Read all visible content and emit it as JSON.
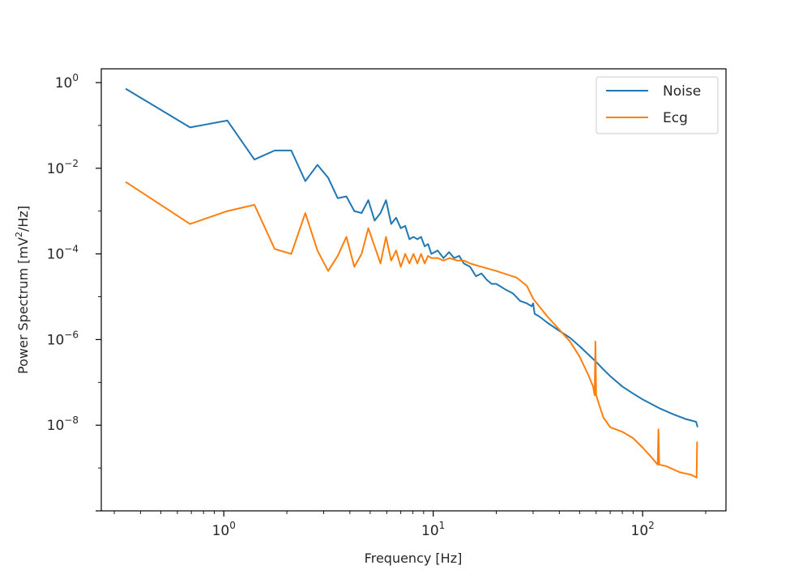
{
  "chart_data": {
    "type": "line",
    "title": "",
    "xlabel": "Frequency [Hz]",
    "ylabel_parts": [
      "Power Spectrum [mV",
      "2",
      "/Hz]"
    ],
    "xscale": "log",
    "yscale": "log",
    "xlim": [
      0.26,
      250
    ],
    "ylim": [
      1e-10,
      2.1
    ],
    "grid": false,
    "legend_position": "top-right",
    "x_ticks": [
      {
        "base": "10",
        "exp": "0",
        "value": 1
      },
      {
        "base": "10",
        "exp": "1",
        "value": 10
      },
      {
        "base": "10",
        "exp": "2",
        "value": 100
      }
    ],
    "y_ticks": [
      {
        "base": "10",
        "exp": "0",
        "value": 1
      },
      {
        "base": "10",
        "exp": "−2",
        "value": 0.01
      },
      {
        "base": "10",
        "exp": "−4",
        "value": 0.0001
      },
      {
        "base": "10",
        "exp": "−6",
        "value": 1e-06
      },
      {
        "base": "10",
        "exp": "−8",
        "value": 1e-08
      }
    ],
    "series": [
      {
        "name": "Noise",
        "color": "#1f77b4",
        "points": [
          [
            0.34,
            0.72
          ],
          [
            0.69,
            0.09
          ],
          [
            1.04,
            0.13
          ],
          [
            1.4,
            0.016
          ],
          [
            1.75,
            0.026
          ],
          [
            2.1,
            0.026
          ],
          [
            2.45,
            0.005
          ],
          [
            2.8,
            0.012
          ],
          [
            3.15,
            0.006
          ],
          [
            3.5,
            0.002
          ],
          [
            3.85,
            0.0022
          ],
          [
            4.2,
            0.001
          ],
          [
            4.55,
            0.0009
          ],
          [
            4.9,
            0.0018
          ],
          [
            5.25,
            0.0006
          ],
          [
            5.6,
            0.0009
          ],
          [
            5.95,
            0.0018
          ],
          [
            6.3,
            0.0005
          ],
          [
            6.65,
            0.0007
          ],
          [
            7.0,
            0.0004
          ],
          [
            7.35,
            0.00045
          ],
          [
            7.7,
            0.00022
          ],
          [
            8.05,
            0.00025
          ],
          [
            8.4,
            0.00022
          ],
          [
            8.75,
            0.00025
          ],
          [
            9.1,
            0.00015
          ],
          [
            9.45,
            0.00017
          ],
          [
            9.8,
            0.0001
          ],
          [
            10.5,
            0.00012
          ],
          [
            11.2,
            8e-05
          ],
          [
            11.9,
            0.00011
          ],
          [
            12.6,
            8e-05
          ],
          [
            13.3,
            9e-05
          ],
          [
            14,
            6e-05
          ],
          [
            15,
            5e-05
          ],
          [
            16,
            3e-05
          ],
          [
            17,
            3.5e-05
          ],
          [
            18,
            2.5e-05
          ],
          [
            19,
            2e-05
          ],
          [
            20,
            2e-05
          ],
          [
            22,
            1.5e-05
          ],
          [
            24,
            1.2e-05
          ],
          [
            26,
            8e-06
          ],
          [
            28,
            7e-06
          ],
          [
            29.5,
            6e-06
          ],
          [
            30,
            7e-06
          ],
          [
            30.5,
            4e-06
          ],
          [
            32,
            3.5e-06
          ],
          [
            35,
            2.5e-06
          ],
          [
            40,
            1.6e-06
          ],
          [
            45,
            1.1e-06
          ],
          [
            50,
            7e-07
          ],
          [
            55,
            4.5e-07
          ],
          [
            60,
            3e-07
          ],
          [
            65,
            2e-07
          ],
          [
            70,
            1.4e-07
          ],
          [
            80,
            8e-08
          ],
          [
            90,
            5.5e-08
          ],
          [
            100,
            4e-08
          ],
          [
            120,
            2.5e-08
          ],
          [
            140,
            1.8e-08
          ],
          [
            160,
            1.4e-08
          ],
          [
            180,
            1.2e-08
          ],
          [
            183,
            9e-09
          ]
        ]
      },
      {
        "name": "Ecg",
        "color": "#ff7f0e",
        "points": [
          [
            0.34,
            0.0048
          ],
          [
            0.69,
            0.0005
          ],
          [
            1.04,
            0.001
          ],
          [
            1.4,
            0.0014
          ],
          [
            1.75,
            0.00013
          ],
          [
            2.1,
            0.0001
          ],
          [
            2.45,
            0.0009
          ],
          [
            2.8,
            0.00012
          ],
          [
            3.15,
            4e-05
          ],
          [
            3.5,
            9e-05
          ],
          [
            3.85,
            0.00025
          ],
          [
            4.2,
            5e-05
          ],
          [
            4.55,
            0.0001
          ],
          [
            4.9,
            0.0004
          ],
          [
            5.25,
            0.00015
          ],
          [
            5.6,
            6e-05
          ],
          [
            5.95,
            0.00025
          ],
          [
            6.3,
            7e-05
          ],
          [
            6.65,
            0.00012
          ],
          [
            7.0,
            5e-05
          ],
          [
            7.35,
            0.0001
          ],
          [
            7.7,
            6e-05
          ],
          [
            8.05,
            0.0001
          ],
          [
            8.4,
            6e-05
          ],
          [
            8.75,
            0.0001
          ],
          [
            9.1,
            6e-05
          ],
          [
            9.45,
            9e-05
          ],
          [
            9.8,
            8e-05
          ],
          [
            10.5,
            8e-05
          ],
          [
            11.2,
            7e-05
          ],
          [
            12,
            8e-05
          ],
          [
            13,
            7e-05
          ],
          [
            14,
            7e-05
          ],
          [
            15,
            6e-05
          ],
          [
            17,
            5e-05
          ],
          [
            20,
            4e-05
          ],
          [
            25,
            2.8e-05
          ],
          [
            28,
            1.8e-05
          ],
          [
            30,
            9e-06
          ],
          [
            35,
            3.5e-06
          ],
          [
            40,
            1.7e-06
          ],
          [
            45,
            9e-07
          ],
          [
            50,
            4e-07
          ],
          [
            55,
            1.5e-07
          ],
          [
            58,
            8e-08
          ],
          [
            59,
            5e-08
          ],
          [
            59.5,
            9e-07
          ],
          [
            60,
            5e-08
          ],
          [
            62,
            3e-08
          ],
          [
            65,
            1.5e-08
          ],
          [
            70,
            9e-09
          ],
          [
            80,
            7e-09
          ],
          [
            90,
            5e-09
          ],
          [
            100,
            3e-09
          ],
          [
            110,
            1.8e-09
          ],
          [
            118,
            1.2e-09
          ],
          [
            119,
            8e-09
          ],
          [
            120,
            1.2e-09
          ],
          [
            130,
            1.1e-09
          ],
          [
            150,
            8e-10
          ],
          [
            170,
            7e-10
          ],
          [
            181,
            6e-10
          ],
          [
            182,
            4e-09
          ],
          [
            183,
            4e-09
          ]
        ]
      }
    ]
  }
}
